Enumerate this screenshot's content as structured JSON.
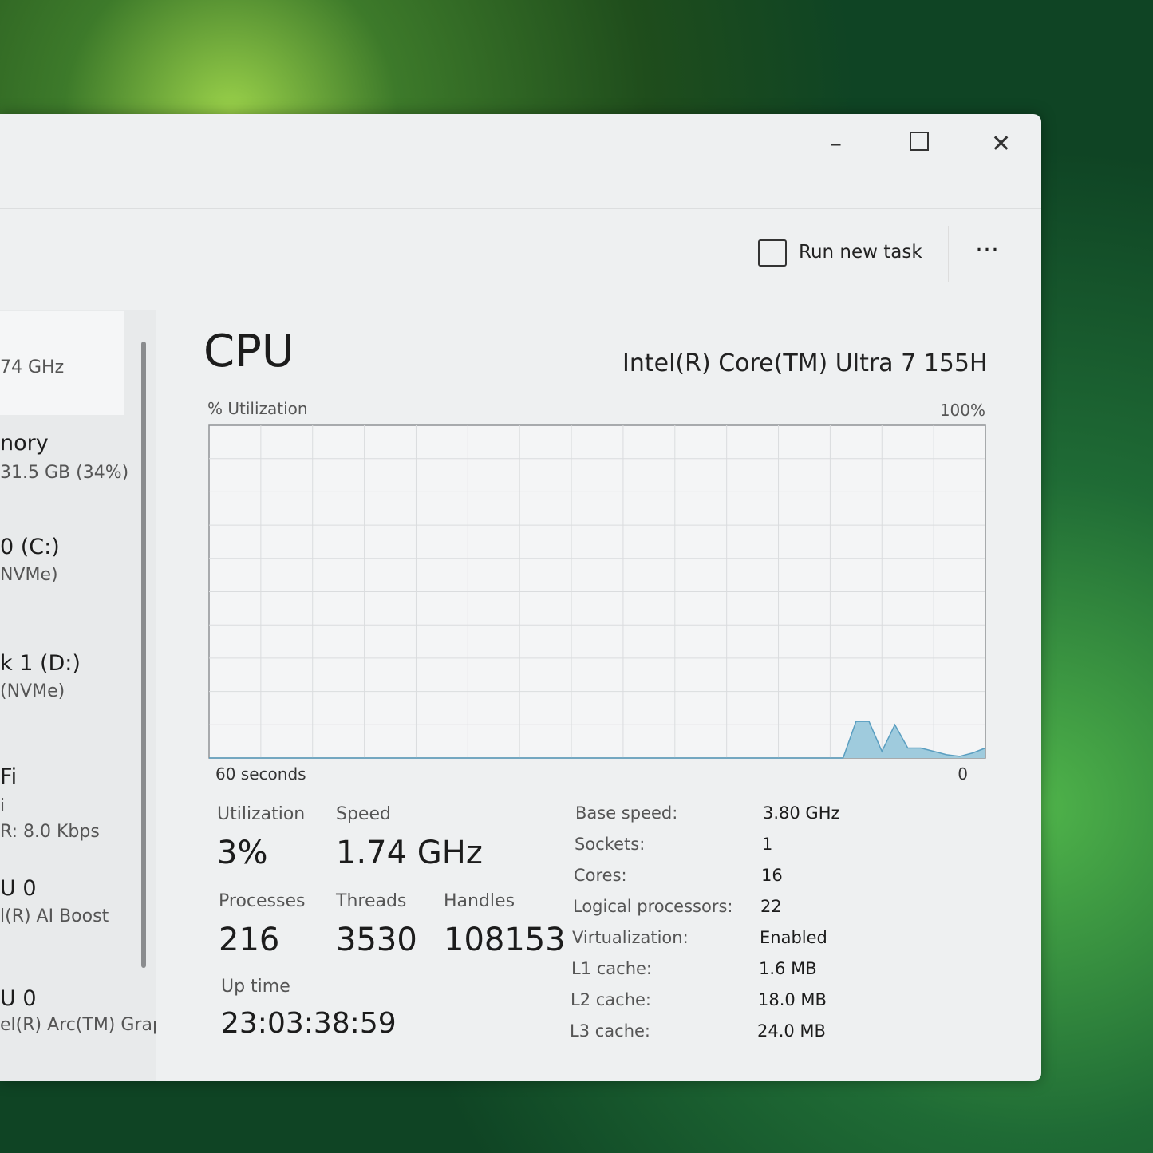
{
  "toolbar": {
    "run_new_task": "Run new task"
  },
  "sidebar": [
    {
      "lines": [
        "74 GHz"
      ]
    },
    {
      "lines": [
        "nory",
        "31.5 GB (34%)"
      ]
    },
    {
      "lines": [
        "0 (C:)",
        "NVMe)"
      ]
    },
    {
      "lines": [
        "k 1 (D:)",
        "(NVMe)"
      ]
    },
    {
      "lines": [
        "Fi",
        "i",
        "R: 8.0 Kbps"
      ]
    },
    {
      "lines": [
        "U 0",
        "l(R) AI Boost"
      ]
    },
    {
      "lines": [
        "U 0",
        "el(R) Arc(TM) Grap"
      ]
    }
  ],
  "header": {
    "title": "CPU",
    "processor": "Intel(R) Core(TM) Ultra 7 155H"
  },
  "chart_data": {
    "type": "area",
    "y_label": "% Utilization",
    "x": [
      60,
      12,
      11,
      10,
      9,
      8,
      7,
      6,
      5,
      4,
      3,
      2,
      1,
      0
    ],
    "values": [
      0,
      0,
      0,
      11,
      11,
      2,
      10,
      3,
      3,
      2,
      1,
      0.5,
      1.5,
      3
    ],
    "xlim": [
      60,
      0
    ],
    "ylim": [
      0,
      100
    ],
    "xticks": [
      {
        "value": 60,
        "label": "60 seconds"
      },
      {
        "value": 0,
        "label": "0"
      }
    ],
    "yticks": [
      {
        "value": 100,
        "label": "100%"
      }
    ],
    "color": "#9fcbdd",
    "grid": true
  },
  "stats": [
    {
      "label": "Utilization",
      "value": "3%"
    },
    {
      "label": "Speed",
      "value": "1.74 GHz"
    },
    {
      "label": "Processes",
      "value": "216"
    },
    {
      "label": "Threads",
      "value": "3530"
    },
    {
      "label": "Handles",
      "value": "108153"
    },
    {
      "label": "Up time",
      "value": "23:03:38:59"
    }
  ],
  "details": [
    {
      "label": "Base speed:",
      "value": "3.80 GHz"
    },
    {
      "label": "Sockets:",
      "value": "1"
    },
    {
      "label": "Cores:",
      "value": "16"
    },
    {
      "label": "Logical processors:",
      "value": "22"
    },
    {
      "label": "Virtualization:",
      "value": "Enabled"
    },
    {
      "label": "L1 cache:",
      "value": "1.6 MB"
    },
    {
      "label": "L2 cache:",
      "value": "18.0 MB"
    },
    {
      "label": "L3 cache:",
      "value": "24.0 MB"
    }
  ]
}
